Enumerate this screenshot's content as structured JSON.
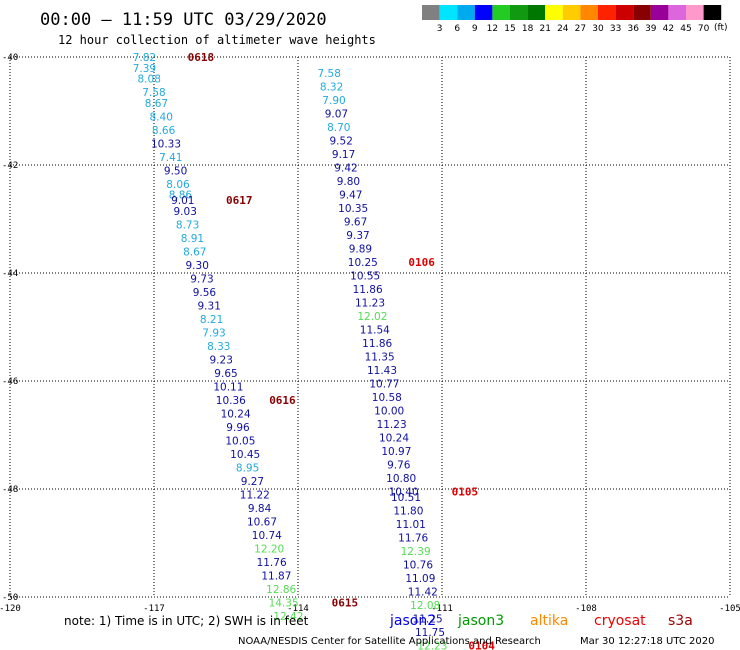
{
  "chart_data": {
    "type": "scatter",
    "title": "00:00 – 11:59 UTC 03/29/2020",
    "subtitle": "12 hour collection of altimeter wave heights",
    "xlim": [
      -120,
      -105
    ],
    "ylim": [
      -50,
      -40
    ],
    "x_ticks": [
      -120,
      -117,
      -114,
      -111,
      -108,
      -105
    ],
    "y_ticks": [
      -40,
      -42,
      -44,
      -46,
      -48,
      -50
    ],
    "grid": true,
    "colorbar": {
      "unit_label": "(ft)",
      "labels": [
        "3",
        "6",
        "9",
        "12",
        "15",
        "18",
        "21",
        "24",
        "27",
        "30",
        "33",
        "36",
        "39",
        "42",
        "45",
        "70"
      ],
      "colors": [
        "#808080",
        "#00e5ff",
        "#00aaee",
        "#0000ff",
        "#22cc22",
        "#119911",
        "#007700",
        "#ffff00",
        "#ffcc00",
        "#ff8800",
        "#ff2200",
        "#cc0000",
        "#880000",
        "#990099",
        "#dd66dd",
        "#ff99cc",
        "#000000"
      ]
    },
    "series": [
      {
        "name": "",
        "points": [
          {
            "x": -117.2,
            "y": -40.0,
            "v": "7.82",
            "c": "#22aadd"
          },
          {
            "x": -117.2,
            "y": -40.2,
            "v": "7.39",
            "c": "#22aadd"
          },
          {
            "x": -117.1,
            "y": -40.4,
            "v": "8.08",
            "c": "#22aadd"
          },
          {
            "x": -117.0,
            "y": -40.65,
            "v": "7.58",
            "c": "#22aadd"
          },
          {
            "x": -116.95,
            "y": -40.85,
            "v": "8.67",
            "c": "#22aadd"
          },
          {
            "x": -116.85,
            "y": -41.1,
            "v": "8.40",
            "c": "#22aadd"
          },
          {
            "x": -116.8,
            "y": -41.35,
            "v": "8.66",
            "c": "#22aadd"
          },
          {
            "x": -116.75,
            "y": -41.6,
            "v": "10.33",
            "c": "#1010a0"
          },
          {
            "x": -116.65,
            "y": -41.85,
            "v": "7.41",
            "c": "#22aadd"
          },
          {
            "x": -116.55,
            "y": -42.1,
            "v": "9.50",
            "c": "#1010a0"
          },
          {
            "x": -116.5,
            "y": -42.35,
            "v": "8.06",
            "c": "#22aadd"
          },
          {
            "x": -116.45,
            "y": -42.55,
            "v": "8.86",
            "c": "#22aadd"
          },
          {
            "x": -116.4,
            "y": -42.65,
            "v": "9.01",
            "c": "#1010a0"
          },
          {
            "x": -116.35,
            "y": -42.85,
            "v": "9.03",
            "c": "#1010a0"
          },
          {
            "x": -116.3,
            "y": -43.1,
            "v": "8.73",
            "c": "#22aadd"
          },
          {
            "x": -116.2,
            "y": -43.35,
            "v": "8.91",
            "c": "#22aadd"
          },
          {
            "x": -116.15,
            "y": -43.6,
            "v": "8.67",
            "c": "#22aadd"
          },
          {
            "x": -116.1,
            "y": -43.85,
            "v": "9.30",
            "c": "#1010a0"
          },
          {
            "x": -116.0,
            "y": -44.1,
            "v": "9.73",
            "c": "#1010a0"
          },
          {
            "x": -115.95,
            "y": -44.35,
            "v": "9.56",
            "c": "#1010a0"
          },
          {
            "x": -115.85,
            "y": -44.6,
            "v": "9.31",
            "c": "#1010a0"
          },
          {
            "x": -115.8,
            "y": -44.85,
            "v": "8.21",
            "c": "#22aadd"
          },
          {
            "x": -115.75,
            "y": -45.1,
            "v": "7.93",
            "c": "#22aadd"
          },
          {
            "x": -115.65,
            "y": -45.35,
            "v": "8.33",
            "c": "#22aadd"
          },
          {
            "x": -115.6,
            "y": -45.6,
            "v": "9.23",
            "c": "#1010a0"
          },
          {
            "x": -115.5,
            "y": -45.85,
            "v": "9.65",
            "c": "#1010a0"
          },
          {
            "x": -115.45,
            "y": -46.1,
            "v": "10.11",
            "c": "#1010a0"
          },
          {
            "x": -115.4,
            "y": -46.35,
            "v": "10.36",
            "c": "#1010a0"
          },
          {
            "x": -115.3,
            "y": -46.6,
            "v": "10.24",
            "c": "#1010a0"
          },
          {
            "x": -115.25,
            "y": -46.85,
            "v": "9.96",
            "c": "#1010a0"
          },
          {
            "x": -115.2,
            "y": -47.1,
            "v": "10.05",
            "c": "#1010a0"
          },
          {
            "x": -115.1,
            "y": -47.35,
            "v": "10.45",
            "c": "#1010a0"
          },
          {
            "x": -115.05,
            "y": -47.6,
            "v": "8.95",
            "c": "#22aadd"
          },
          {
            "x": -114.95,
            "y": -47.85,
            "v": "9.27",
            "c": "#1010a0"
          },
          {
            "x": -114.9,
            "y": -48.1,
            "v": "11.22",
            "c": "#1010a0"
          },
          {
            "x": -114.8,
            "y": -48.35,
            "v": "9.84",
            "c": "#1010a0"
          },
          {
            "x": -114.75,
            "y": -48.6,
            "v": "10.67",
            "c": "#1010a0"
          },
          {
            "x": -114.65,
            "y": -48.85,
            "v": "10.74",
            "c": "#1010a0"
          },
          {
            "x": -114.6,
            "y": -49.1,
            "v": "12.20",
            "c": "#55dd55"
          },
          {
            "x": -114.55,
            "y": -49.35,
            "v": "11.76",
            "c": "#1010a0"
          },
          {
            "x": -114.45,
            "y": -49.6,
            "v": "11.87",
            "c": "#1010a0"
          },
          {
            "x": -114.35,
            "y": -49.85,
            "v": "12.86",
            "c": "#55dd55"
          },
          {
            "x": -114.3,
            "y": -50.1,
            "v": "14.35",
            "c": "#55dd55"
          },
          {
            "x": -114.2,
            "y": -50.35,
            "v": "12.42",
            "c": "#55dd55"
          },
          {
            "x": -113.35,
            "y": -40.3,
            "v": "7.58",
            "c": "#22aadd"
          },
          {
            "x": -113.3,
            "y": -40.55,
            "v": "8.32",
            "c": "#22aadd"
          },
          {
            "x": -113.25,
            "y": -40.8,
            "v": "7.90",
            "c": "#22aadd"
          },
          {
            "x": -113.2,
            "y": -41.05,
            "v": "9.07",
            "c": "#1010a0"
          },
          {
            "x": -113.15,
            "y": -41.3,
            "v": "8.70",
            "c": "#22aadd"
          },
          {
            "x": -113.1,
            "y": -41.55,
            "v": "9.52",
            "c": "#1010a0"
          },
          {
            "x": -113.05,
            "y": -41.8,
            "v": "9.17",
            "c": "#1010a0"
          },
          {
            "x": -113.0,
            "y": -42.05,
            "v": "9.42",
            "c": "#1010a0"
          },
          {
            "x": -112.95,
            "y": -42.3,
            "v": "9.80",
            "c": "#1010a0"
          },
          {
            "x": -112.9,
            "y": -42.55,
            "v": "9.47",
            "c": "#1010a0"
          },
          {
            "x": -112.85,
            "y": -42.8,
            "v": "10.35",
            "c": "#1010a0"
          },
          {
            "x": -112.8,
            "y": -43.05,
            "v": "9.67",
            "c": "#1010a0"
          },
          {
            "x": -112.75,
            "y": -43.3,
            "v": "9.37",
            "c": "#1010a0"
          },
          {
            "x": -112.7,
            "y": -43.55,
            "v": "9.89",
            "c": "#1010a0"
          },
          {
            "x": -112.65,
            "y": -43.8,
            "v": "10.25",
            "c": "#1010a0"
          },
          {
            "x": -112.6,
            "y": -44.05,
            "v": "10.55",
            "c": "#1010a0"
          },
          {
            "x": -112.55,
            "y": -44.3,
            "v": "11.86",
            "c": "#1010a0"
          },
          {
            "x": -112.5,
            "y": -44.55,
            "v": "11.23",
            "c": "#1010a0"
          },
          {
            "x": -112.45,
            "y": -44.8,
            "v": "12.02",
            "c": "#55dd55"
          },
          {
            "x": -112.4,
            "y": -45.05,
            "v": "11.54",
            "c": "#1010a0"
          },
          {
            "x": -112.35,
            "y": -45.3,
            "v": "11.86",
            "c": "#1010a0"
          },
          {
            "x": -112.3,
            "y": -45.55,
            "v": "11.35",
            "c": "#1010a0"
          },
          {
            "x": -112.25,
            "y": -45.8,
            "v": "11.43",
            "c": "#1010a0"
          },
          {
            "x": -112.2,
            "y": -46.05,
            "v": "10.77",
            "c": "#1010a0"
          },
          {
            "x": -112.15,
            "y": -46.3,
            "v": "10.58",
            "c": "#1010a0"
          },
          {
            "x": -112.1,
            "y": -46.55,
            "v": "10.00",
            "c": "#1010a0"
          },
          {
            "x": -112.05,
            "y": -46.8,
            "v": "11.23",
            "c": "#1010a0"
          },
          {
            "x": -112.0,
            "y": -47.05,
            "v": "10.24",
            "c": "#1010a0"
          },
          {
            "x": -111.95,
            "y": -47.3,
            "v": "10.97",
            "c": "#1010a0"
          },
          {
            "x": -111.9,
            "y": -47.55,
            "v": "9.76",
            "c": "#1010a0"
          },
          {
            "x": -111.85,
            "y": -47.8,
            "v": "10.80",
            "c": "#1010a0"
          },
          {
            "x": -111.8,
            "y": -48.05,
            "v": "10.40",
            "c": "#1010a0"
          },
          {
            "x": -111.75,
            "y": -48.15,
            "v": "10.51",
            "c": "#1010a0"
          },
          {
            "x": -111.7,
            "y": -48.4,
            "v": "11.80",
            "c": "#1010a0"
          },
          {
            "x": -111.65,
            "y": -48.65,
            "v": "11.01",
            "c": "#1010a0"
          },
          {
            "x": -111.6,
            "y": -48.9,
            "v": "11.76",
            "c": "#1010a0"
          },
          {
            "x": -111.55,
            "y": -49.15,
            "v": "12.39",
            "c": "#55dd55"
          },
          {
            "x": -111.5,
            "y": -49.4,
            "v": "10.76",
            "c": "#1010a0"
          },
          {
            "x": -111.45,
            "y": -49.65,
            "v": "11.09",
            "c": "#1010a0"
          },
          {
            "x": -111.4,
            "y": -49.9,
            "v": "11.42",
            "c": "#1010a0"
          },
          {
            "x": -111.35,
            "y": -50.15,
            "v": "12.08",
            "c": "#55dd55"
          },
          {
            "x": -111.3,
            "y": -50.4,
            "v": "11.25",
            "c": "#1010a0"
          },
          {
            "x": -111.25,
            "y": -50.65,
            "v": "11.75",
            "c": "#1010a0"
          },
          {
            "x": -111.2,
            "y": -50.9,
            "v": "12.23",
            "c": "#55dd55"
          }
        ]
      }
    ],
    "pass_labels": [
      {
        "text": "0618",
        "x": -116.3,
        "y": -40.0,
        "c": "#880000"
      },
      {
        "text": "0617",
        "x": -115.5,
        "y": -42.65,
        "c": "#880000"
      },
      {
        "text": "0106",
        "x": -111.7,
        "y": -43.8,
        "c": "#dd0000"
      },
      {
        "text": "0616",
        "x": -114.6,
        "y": -46.35,
        "c": "#880000"
      },
      {
        "text": "0105",
        "x": -110.8,
        "y": -48.05,
        "c": "#dd0000"
      },
      {
        "text": "0615",
        "x": -113.3,
        "y": -50.1,
        "c": "#880000"
      },
      {
        "text": "0104",
        "x": -110.45,
        "y": -50.9,
        "c": "#dd0000"
      }
    ],
    "legend": [
      {
        "name": "jason2",
        "color": "#0000ee"
      },
      {
        "name": "jason3",
        "color": "#009900"
      },
      {
        "name": "altika",
        "color": "#ff8800"
      },
      {
        "name": "cryosat",
        "color": "#ee0000"
      },
      {
        "name": "s3a",
        "color": "#990000"
      }
    ],
    "note": "note:  1) Time is in UTC;  2) SWH is in feet",
    "credit": "NOAA/NESDIS Center for Satellite Applications and Research",
    "generated": "Mar 30 12:27:18 UTC 2020"
  }
}
